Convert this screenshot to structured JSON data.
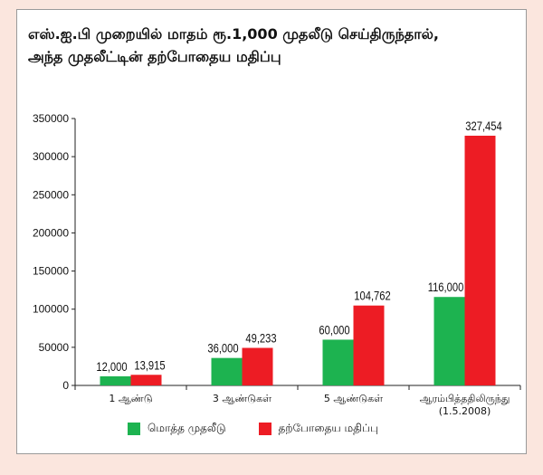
{
  "title_lines": [
    "எஸ்.ஐ.பி முறையில் மாதம் ரூ.1,000 முதலீடு செய்திருந்தால்,",
    "அந்த முதலீட்டின் தற்போதைய மதிப்பு"
  ],
  "colors": {
    "green": "#1db350",
    "red": "#ed1c24"
  },
  "chart_data": {
    "type": "bar",
    "categories": [
      [
        "1 ஆண்டு"
      ],
      [
        "3 ஆண்டுகள்"
      ],
      [
        "5 ஆண்டுகள்"
      ],
      [
        "ஆரம்பித்ததிலிருந்து",
        "(1.5.2008)"
      ]
    ],
    "series": [
      {
        "name": "மொத்த முதலீடு",
        "values": [
          12000,
          36000,
          60000,
          116000
        ],
        "labels": [
          "12,000",
          "36,000",
          "60,000",
          "116,000"
        ]
      },
      {
        "name": "தற்போதைய மதிப்பு",
        "values": [
          13915,
          49233,
          104762,
          327454
        ],
        "labels": [
          "13,915",
          "49,233",
          "104,762",
          "327,454"
        ]
      }
    ],
    "yticks": [
      "0",
      "50000",
      "100000",
      "150000",
      "200000",
      "250000",
      "300000",
      "350000"
    ],
    "ylim": [
      0,
      350000
    ],
    "grid": false,
    "legend_position": "bottom"
  }
}
